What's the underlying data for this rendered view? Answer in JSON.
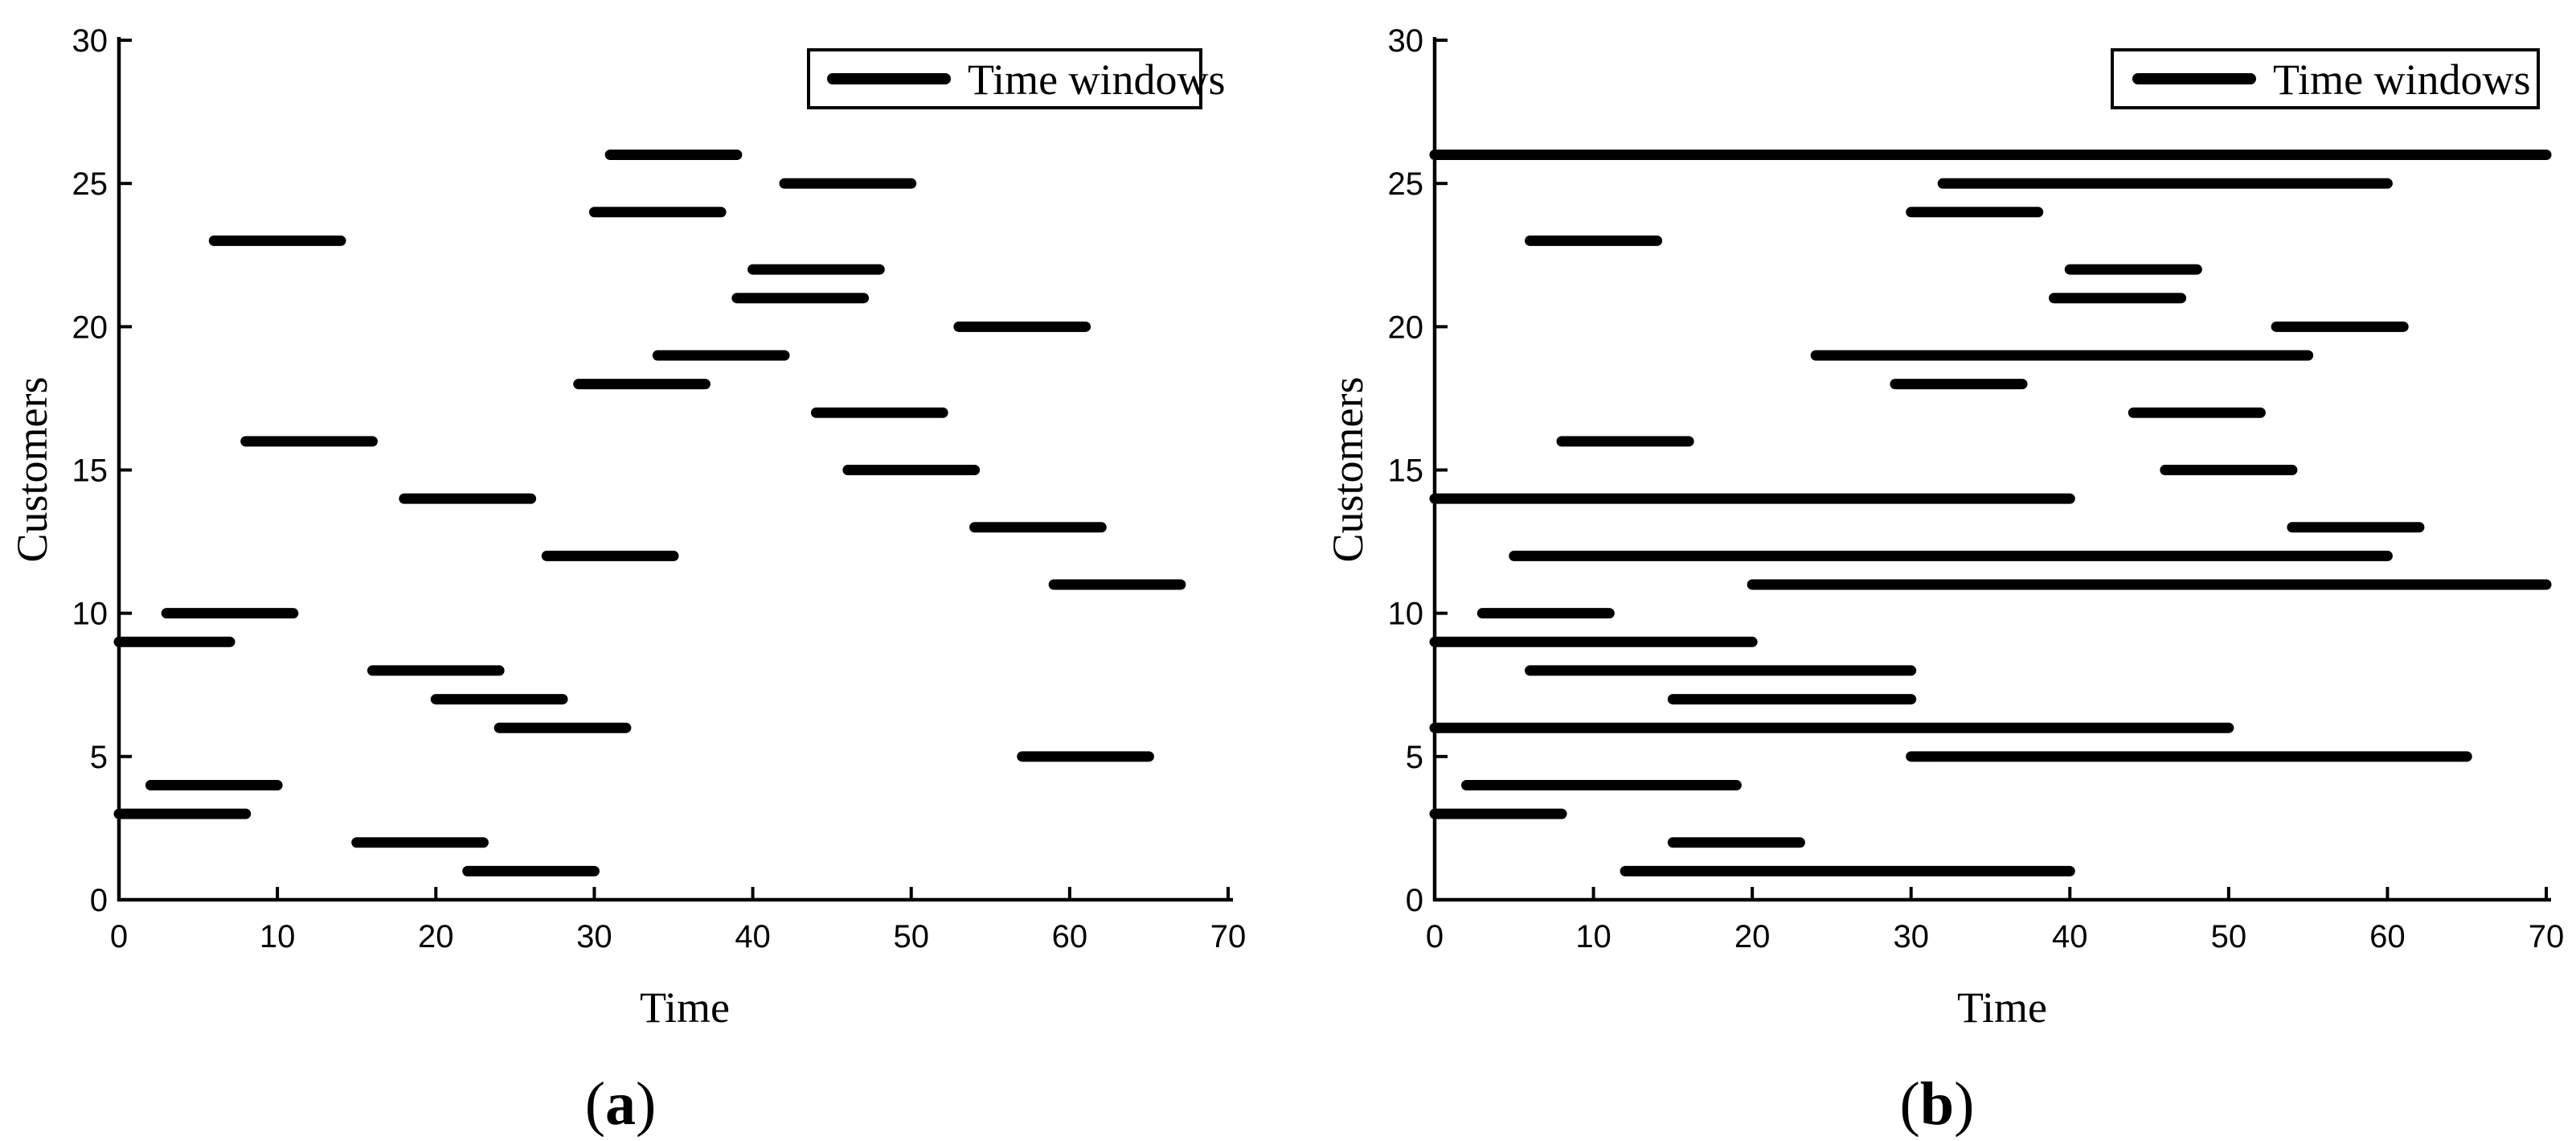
{
  "figure": {
    "ink_color": "#000000",
    "background_color": "#ffffff"
  },
  "chart_data": [
    {
      "id": "a",
      "type": "bar",
      "variant": "horizontal-interval-segments",
      "title": "",
      "xlabel": "Time",
      "ylabel": "Customers",
      "xlim": [
        0,
        70
      ],
      "ylim": [
        0,
        30
      ],
      "x_ticks": [
        0,
        10,
        20,
        30,
        40,
        50,
        60,
        70
      ],
      "y_ticks": [
        0,
        5,
        10,
        15,
        20,
        25,
        30
      ],
      "grid": false,
      "legend": {
        "label": "Time windows",
        "position": "top-right"
      },
      "caption_open": "(",
      "caption_letter": "a",
      "caption_close": ")",
      "windows_format": [
        "customer",
        "window_start",
        "window_end"
      ],
      "windows": [
        [
          1,
          22,
          30
        ],
        [
          2,
          15,
          23
        ],
        [
          3,
          0,
          8
        ],
        [
          4,
          2,
          10
        ],
        [
          5,
          57,
          65
        ],
        [
          6,
          24,
          32
        ],
        [
          7,
          20,
          28
        ],
        [
          8,
          16,
          24
        ],
        [
          9,
          0,
          7
        ],
        [
          10,
          3,
          11
        ],
        [
          11,
          59,
          67
        ],
        [
          12,
          27,
          35
        ],
        [
          13,
          54,
          62
        ],
        [
          14,
          18,
          26
        ],
        [
          15,
          46,
          54
        ],
        [
          16,
          8,
          16
        ],
        [
          17,
          44,
          52
        ],
        [
          18,
          29,
          37
        ],
        [
          19,
          34,
          42
        ],
        [
          20,
          53,
          61
        ],
        [
          21,
          39,
          47
        ],
        [
          22,
          40,
          48
        ],
        [
          23,
          6,
          14
        ],
        [
          24,
          30,
          38
        ],
        [
          25,
          42,
          50
        ],
        [
          26,
          31,
          39
        ]
      ]
    },
    {
      "id": "b",
      "type": "bar",
      "variant": "horizontal-interval-segments",
      "title": "",
      "xlabel": "Time",
      "ylabel": "Customers",
      "xlim": [
        0,
        70
      ],
      "ylim": [
        0,
        30
      ],
      "x_ticks": [
        0,
        10,
        20,
        30,
        40,
        50,
        60,
        70
      ],
      "y_ticks": [
        0,
        5,
        10,
        15,
        20,
        25,
        30
      ],
      "grid": false,
      "legend": {
        "label": "Time windows",
        "position": "top-right"
      },
      "caption_open": "(",
      "caption_letter": "b",
      "caption_close": ")",
      "windows_format": [
        "customer",
        "window_start",
        "window_end"
      ],
      "windows": [
        [
          1,
          12,
          40
        ],
        [
          2,
          15,
          23
        ],
        [
          3,
          0,
          8
        ],
        [
          4,
          2,
          19
        ],
        [
          5,
          30,
          65
        ],
        [
          6,
          0,
          50
        ],
        [
          7,
          15,
          30
        ],
        [
          8,
          6,
          30
        ],
        [
          9,
          0,
          20
        ],
        [
          10,
          3,
          11
        ],
        [
          11,
          20,
          70
        ],
        [
          12,
          5,
          60
        ],
        [
          13,
          54,
          62
        ],
        [
          14,
          0,
          40
        ],
        [
          15,
          46,
          54
        ],
        [
          16,
          8,
          16
        ],
        [
          17,
          44,
          52
        ],
        [
          18,
          29,
          37
        ],
        [
          19,
          24,
          55
        ],
        [
          20,
          53,
          61
        ],
        [
          21,
          39,
          47
        ],
        [
          22,
          40,
          48
        ],
        [
          23,
          6,
          14
        ],
        [
          24,
          30,
          38
        ],
        [
          25,
          32,
          60
        ],
        [
          26,
          0,
          70
        ]
      ]
    }
  ]
}
